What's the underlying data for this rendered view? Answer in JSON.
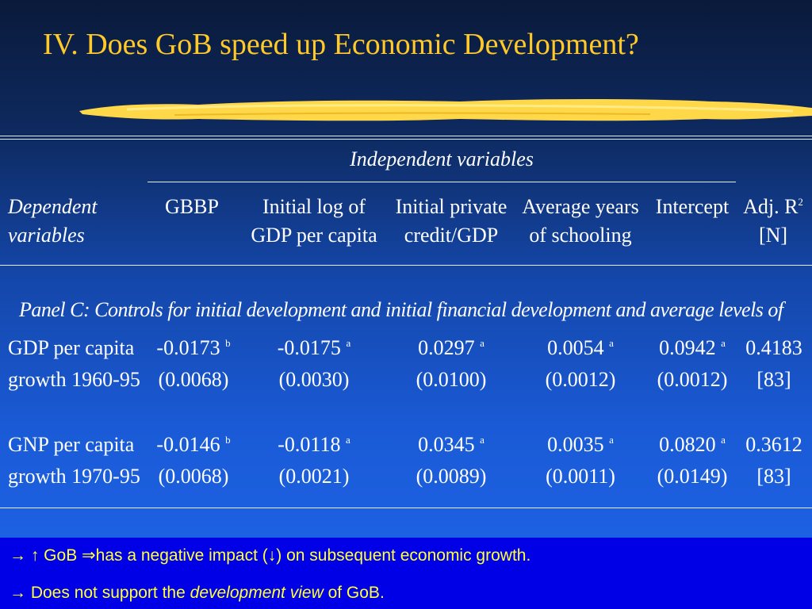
{
  "slide": {
    "title": "IV. Does GoB speed up Economic Development?"
  },
  "table": {
    "group_header": "Independent variables",
    "row_header": [
      "Dependent",
      "variables"
    ],
    "columns": [
      [
        "GBBP",
        ""
      ],
      [
        "Initial log of",
        "GDP per capita"
      ],
      [
        "Initial private",
        "credit/GDP"
      ],
      [
        "Average years",
        "of schooling"
      ],
      [
        "Intercept",
        ""
      ],
      [
        "Adj. R",
        "[N]"
      ]
    ],
    "adj_r_sup": "2",
    "panel_title": "Panel C: Controls for initial development and initial financial development and average levels of",
    "rows": [
      {
        "label": [
          "GDP per capita",
          "growth 1960-95"
        ],
        "coefs": [
          {
            "v": "-0.0173",
            "s": "b"
          },
          {
            "v": "-0.0175",
            "s": "a"
          },
          {
            "v": "0.0297",
            "s": "a"
          },
          {
            "v": "0.0054",
            "s": "a"
          },
          {
            "v": "0.0942",
            "s": "a"
          },
          {
            "v": "0.4183",
            "s": ""
          }
        ],
        "se": [
          "(0.0068)",
          "(0.0030)",
          "(0.0100)",
          "(0.0012)",
          "(0.0012)",
          "[83]"
        ]
      },
      {
        "label": [
          "GNP per capita",
          "growth 1970-95"
        ],
        "coefs": [
          {
            "v": "-0.0146",
            "s": "b"
          },
          {
            "v": "-0.0118",
            "s": "a"
          },
          {
            "v": "0.0345",
            "s": "a"
          },
          {
            "v": "0.0035",
            "s": "a"
          },
          {
            "v": "0.0820",
            "s": "a"
          },
          {
            "v": "0.3612",
            "s": ""
          }
        ],
        "se": [
          "(0.0068)",
          "(0.0021)",
          "(0.0089)",
          "(0.0011)",
          "(0.0149)",
          "[83]"
        ]
      }
    ]
  },
  "bullets": {
    "b1": {
      "arrow": "→",
      "up": "↑",
      "gob": " GoB ",
      "implies": "⇒",
      "text1": "has a negative impact (",
      "down": "↓",
      "text2": ") on subsequent economic growth."
    },
    "b2": {
      "arrow": "→",
      "text1": " Does not support the ",
      "em": "development view",
      "text2": " of GoB."
    }
  },
  "colors": {
    "title": "#ffc929",
    "brush": "#ffd84a",
    "bullet_text": "#ffff3a",
    "bullet_bg": "#0000e6"
  }
}
